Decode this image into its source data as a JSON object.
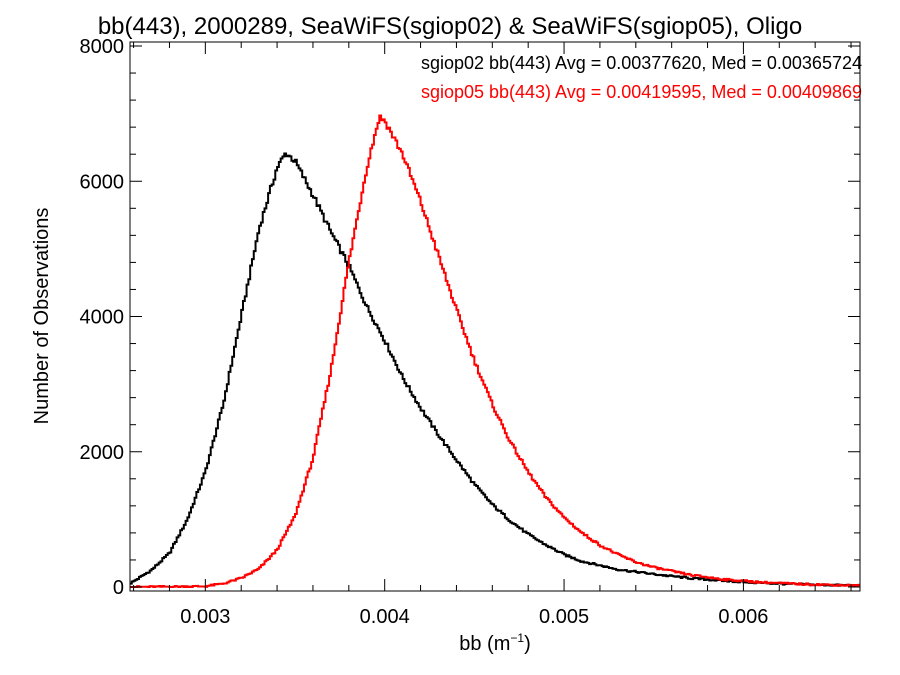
{
  "chart_data": {
    "type": "histogram",
    "title": "bb(443), 2000289, SeaWiFS(sgiop02) & SeaWiFS(sgiop05), Oligo",
    "xlabel": "bb (m",
    "xlabel_sup": "−1",
    "xlabel_close": ")",
    "ylabel": "Number of Observations",
    "xlim": [
      0.00258,
      0.00665
    ],
    "ylim": [
      0,
      8000
    ],
    "x_ticks": [
      {
        "value": 0.003,
        "label": "0.003"
      },
      {
        "value": 0.004,
        "label": "0.004"
      },
      {
        "value": 0.005,
        "label": "0.005"
      },
      {
        "value": 0.006,
        "label": "0.006"
      }
    ],
    "y_ticks": [
      {
        "value": 0,
        "label": "0"
      },
      {
        "value": 2000,
        "label": "2000"
      },
      {
        "value": 4000,
        "label": "4000"
      },
      {
        "value": 6000,
        "label": "6000"
      },
      {
        "value": 8000,
        "label": "8000"
      }
    ],
    "grid": false,
    "legend_position": "top-right",
    "series": [
      {
        "name": "sgiop02 bb(443) Avg = 0.00377620, Med = 0.00365724",
        "color": "#000000",
        "x": [
          0.00258,
          0.0027,
          0.0028,
          0.0029,
          0.003,
          0.0031,
          0.0032,
          0.0033,
          0.0034,
          0.00345,
          0.0035,
          0.0036,
          0.0037,
          0.0038,
          0.0039,
          0.004,
          0.0041,
          0.0042,
          0.0043,
          0.0044,
          0.0045,
          0.0046,
          0.0047,
          0.0048,
          0.0049,
          0.005,
          0.0051,
          0.0052,
          0.0053,
          0.0055,
          0.0057,
          0.0059,
          0.0061,
          0.0063,
          0.00665
        ],
        "y": [
          50,
          250,
          500,
          1000,
          1700,
          2700,
          4000,
          5300,
          6200,
          6420,
          6300,
          5800,
          5250,
          4750,
          4150,
          3650,
          3100,
          2650,
          2250,
          1880,
          1520,
          1220,
          980,
          780,
          620,
          480,
          380,
          320,
          260,
          190,
          130,
          90,
          60,
          40,
          20
        ]
      },
      {
        "name": "sgiop05 bb(443) Avg = 0.00419595, Med = 0.00409869",
        "color": "#ff0000",
        "x": [
          0.00258,
          0.003,
          0.0031,
          0.0032,
          0.0033,
          0.0034,
          0.0035,
          0.0036,
          0.0037,
          0.0038,
          0.0039,
          0.00397,
          0.004,
          0.0041,
          0.0042,
          0.0043,
          0.0044,
          0.0045,
          0.0046,
          0.0047,
          0.0048,
          0.0049,
          0.005,
          0.0051,
          0.0052,
          0.0053,
          0.0054,
          0.0055,
          0.0057,
          0.0059,
          0.0061,
          0.0063,
          0.00665
        ],
        "y": [
          0,
          10,
          50,
          130,
          270,
          550,
          1050,
          1900,
          3200,
          4800,
          6200,
          6950,
          6900,
          6400,
          5700,
          4900,
          4100,
          3350,
          2700,
          2150,
          1700,
          1320,
          1030,
          800,
          620,
          480,
          370,
          290,
          180,
          110,
          70,
          45,
          20
        ]
      }
    ]
  }
}
